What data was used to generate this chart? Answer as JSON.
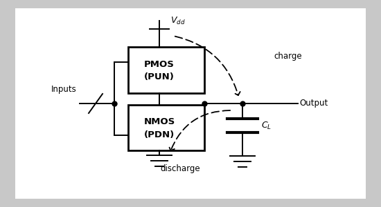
{
  "bg_color": "#c8c8c8",
  "fig_bg": "#c8c8c8",
  "box_color": "#000000",
  "pmos_label1": "PMOS",
  "pmos_label2": "(PUN)",
  "nmos_label1": "NMOS",
  "nmos_label2": "(PDN)",
  "vdd_label": "$V_{dd}$",
  "output_label": "Output",
  "inputs_label": "Inputs",
  "charge_label": "charge",
  "discharge_label": "discharge",
  "cl_label": "$C_L$"
}
